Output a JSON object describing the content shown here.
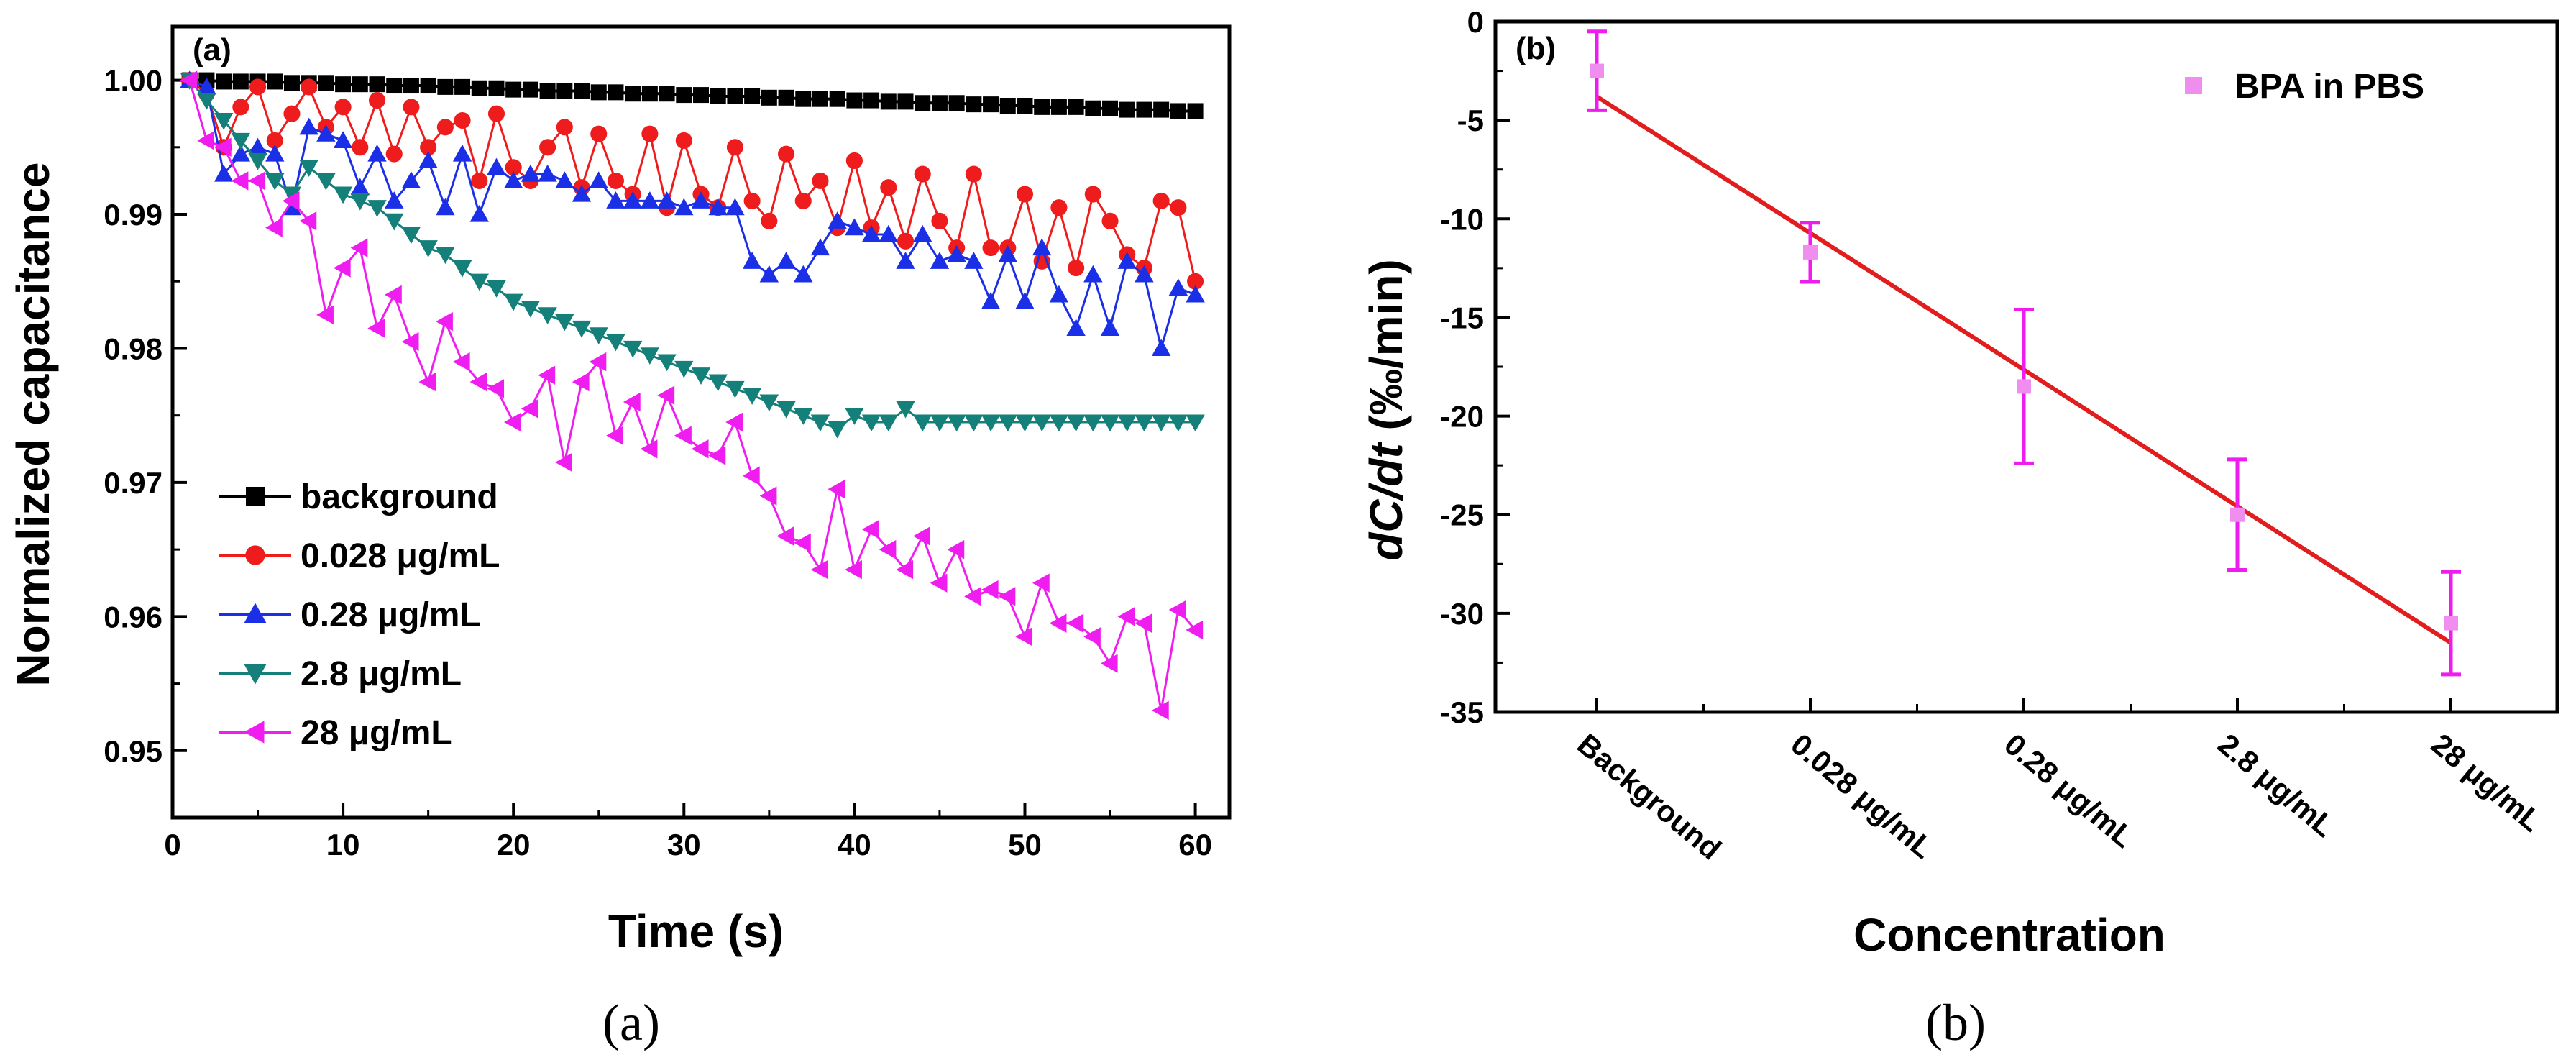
{
  "captions": [
    "(a)",
    "(b)"
  ],
  "chart_data": [
    {
      "type": "line",
      "panel_label": "(a)",
      "xlabel": "Time (s)",
      "ylabel": "Normalized capacitance",
      "xlim": [
        0,
        62
      ],
      "ylim": [
        0.945,
        1.004
      ],
      "xticks": [
        "0",
        "10",
        "20",
        "30",
        "40",
        "50",
        "60"
      ],
      "yticks": [
        "0.95",
        "0.96",
        "0.97",
        "0.98",
        "0.99",
        "1.00"
      ],
      "x": [
        1,
        2,
        3,
        4,
        5,
        6,
        7,
        8,
        9,
        10,
        11,
        12,
        13,
        14,
        15,
        16,
        17,
        18,
        19,
        20,
        21,
        22,
        23,
        24,
        25,
        26,
        27,
        28,
        29,
        30,
        31,
        32,
        33,
        34,
        35,
        36,
        37,
        38,
        39,
        40,
        41,
        42,
        43,
        44,
        45,
        46,
        47,
        48,
        49,
        50,
        51,
        52,
        53,
        54,
        55,
        56,
        57,
        58,
        59,
        60
      ],
      "legend_position": "lower-left",
      "series": [
        {
          "name": "background",
          "color": "#000000",
          "marker": "square",
          "values": [
            1.0,
            1.0,
            0.9999,
            0.9999,
            0.9999,
            0.9999,
            0.9998,
            0.9998,
            0.9998,
            0.9997,
            0.9997,
            0.9997,
            0.9996,
            0.9996,
            0.9996,
            0.9995,
            0.9995,
            0.9994,
            0.9994,
            0.9993,
            0.9993,
            0.9992,
            0.9992,
            0.9992,
            0.9991,
            0.9991,
            0.999,
            0.999,
            0.999,
            0.9989,
            0.9989,
            0.9988,
            0.9988,
            0.9988,
            0.9987,
            0.9987,
            0.9986,
            0.9986,
            0.9986,
            0.9985,
            0.9985,
            0.9984,
            0.9984,
            0.9983,
            0.9983,
            0.9983,
            0.9982,
            0.9982,
            0.9981,
            0.9981,
            0.998,
            0.998,
            0.998,
            0.9979,
            0.9979,
            0.9978,
            0.9978,
            0.9978,
            0.9977,
            0.9977
          ]
        },
        {
          "name": "0.028 μg/mL",
          "color": "#ee1c1c",
          "marker": "circle",
          "values": [
            1.0,
            0.999,
            0.995,
            0.998,
            0.9995,
            0.9955,
            0.9975,
            0.9995,
            0.9965,
            0.998,
            0.995,
            0.9985,
            0.9945,
            0.998,
            0.995,
            0.9965,
            0.997,
            0.9925,
            0.9975,
            0.9935,
            0.9925,
            0.995,
            0.9965,
            0.992,
            0.996,
            0.9925,
            0.9915,
            0.996,
            0.9905,
            0.9955,
            0.9915,
            0.9905,
            0.995,
            0.991,
            0.9895,
            0.9945,
            0.991,
            0.9925,
            0.989,
            0.994,
            0.989,
            0.992,
            0.988,
            0.993,
            0.9895,
            0.9875,
            0.993,
            0.9875,
            0.9875,
            0.9915,
            0.9865,
            0.9905,
            0.986,
            0.9915,
            0.9895,
            0.987,
            0.986,
            0.991,
            0.9905,
            0.985
          ]
        },
        {
          "name": "0.28 μg/mL",
          "color": "#1a2fe6",
          "marker": "triangle-up",
          "values": [
            1.0,
            0.9995,
            0.993,
            0.9945,
            0.995,
            0.9945,
            0.9905,
            0.9965,
            0.996,
            0.9955,
            0.992,
            0.9945,
            0.991,
            0.9925,
            0.994,
            0.9905,
            0.9945,
            0.99,
            0.9935,
            0.9925,
            0.993,
            0.993,
            0.9925,
            0.9915,
            0.9925,
            0.991,
            0.991,
            0.991,
            0.991,
            0.9905,
            0.991,
            0.9905,
            0.9905,
            0.9865,
            0.9855,
            0.9865,
            0.9855,
            0.9875,
            0.9895,
            0.989,
            0.9885,
            0.9885,
            0.9865,
            0.9885,
            0.9865,
            0.987,
            0.9865,
            0.9835,
            0.987,
            0.9835,
            0.9875,
            0.984,
            0.9815,
            0.9855,
            0.9815,
            0.9865,
            0.9855,
            0.98,
            0.9845,
            0.984
          ]
        },
        {
          "name": "2.8 μg/mL",
          "color": "#157f7a",
          "marker": "triangle-down",
          "values": [
            1.0,
            0.9985,
            0.997,
            0.9955,
            0.994,
            0.9925,
            0.9915,
            0.9935,
            0.9925,
            0.9915,
            0.991,
            0.9905,
            0.9895,
            0.9885,
            0.9875,
            0.987,
            0.986,
            0.985,
            0.9845,
            0.9835,
            0.983,
            0.9825,
            0.982,
            0.9815,
            0.981,
            0.9805,
            0.98,
            0.9795,
            0.979,
            0.9785,
            0.978,
            0.9775,
            0.977,
            0.9765,
            0.976,
            0.9755,
            0.975,
            0.9745,
            0.974,
            0.975,
            0.9745,
            0.9745,
            0.9755,
            0.9745,
            0.9745,
            0.9745,
            0.9745,
            0.9745,
            0.9745,
            0.9745,
            0.9745,
            0.9745,
            0.9745,
            0.9745,
            0.9745,
            0.9745,
            0.9745,
            0.9745,
            0.9745,
            0.9745
          ]
        },
        {
          "name": "28 μg/mL",
          "color": "#f01df0",
          "marker": "triangle-left",
          "values": [
            1.0,
            0.9955,
            0.995,
            0.9925,
            0.9925,
            0.989,
            0.991,
            0.9895,
            0.9825,
            0.986,
            0.9875,
            0.9815,
            0.984,
            0.9805,
            0.9775,
            0.982,
            0.979,
            0.9775,
            0.977,
            0.9745,
            0.9755,
            0.978,
            0.9715,
            0.9775,
            0.979,
            0.9735,
            0.976,
            0.9725,
            0.9765,
            0.9735,
            0.9725,
            0.972,
            0.9745,
            0.9705,
            0.969,
            0.966,
            0.9655,
            0.9635,
            0.9695,
            0.9635,
            0.9665,
            0.965,
            0.9635,
            0.966,
            0.9625,
            0.965,
            0.9615,
            0.962,
            0.9615,
            0.9585,
            0.9625,
            0.9595,
            0.9595,
            0.9585,
            0.9565,
            0.96,
            0.9595,
            0.953,
            0.9605,
            0.959
          ]
        }
      ]
    },
    {
      "type": "scatter",
      "panel_label": "(b)",
      "xlabel": "Concentration",
      "ylabel_parts": [
        "dC/dt",
        " (‰/min)"
      ],
      "ylim": [
        -35,
        0
      ],
      "yticks": [
        "0",
        "-5",
        "-10",
        "-15",
        "-20",
        "-25",
        "-30",
        "-35"
      ],
      "categories": [
        "Background",
        "0.028 μg/mL",
        "0.28 μg/mL",
        "2.8 μg/mL",
        "28 μg/mL"
      ],
      "legend_position": "top-right",
      "series": [
        {
          "name": "BPA in PBS",
          "color": "#f08ef0",
          "marker": "square",
          "values": [
            -2.5,
            -11.7,
            -18.5,
            -25.0,
            -30.5
          ],
          "errors": [
            2.0,
            1.5,
            3.9,
            2.8,
            2.6
          ]
        }
      ],
      "fit": {
        "color": "#e11d1d",
        "start": -3.8,
        "end": -31.5
      }
    }
  ]
}
